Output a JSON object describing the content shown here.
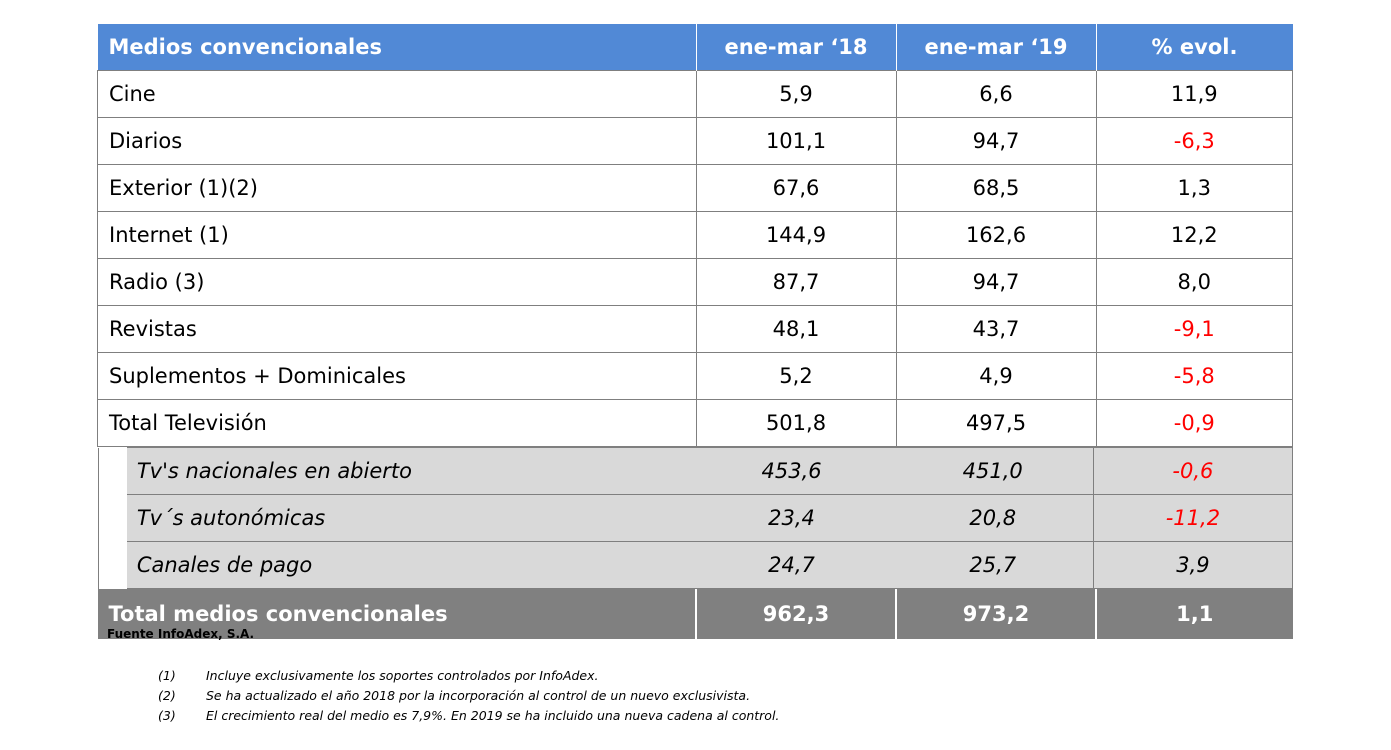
{
  "table": {
    "headers": [
      "Medios convencionales",
      "ene-mar ‘18",
      "ene-mar ‘19",
      "% evol."
    ],
    "rows": [
      {
        "name": "Cine",
        "v18": "5,9",
        "v19": "6,6",
        "evol": "11,9"
      },
      {
        "name": "Diarios",
        "v18": "101,1",
        "v19": "94,7",
        "evol": "-6,3"
      },
      {
        "name": "Exterior (1)(2)",
        "v18": "67,6",
        "v19": "68,5",
        "evol": "1,3"
      },
      {
        "name": "Internet (1)",
        "v18": "144,9",
        "v19": "162,6",
        "evol": "12,2"
      },
      {
        "name": "Radio (3)",
        "v18": "87,7",
        "v19": "94,7",
        "evol": "8,0"
      },
      {
        "name": "Revistas",
        "v18": "48,1",
        "v19": "43,7",
        "evol": "-9,1"
      },
      {
        "name": "Suplementos + Dominicales",
        "v18": "5,2",
        "v19": "4,9",
        "evol": "-5,8"
      },
      {
        "name": "Total Televisión",
        "v18": "501,8",
        "v19": "497,5",
        "evol": "-0,9"
      }
    ],
    "subrows": [
      {
        "name": "Tv's nacionales en abierto",
        "v18": "453,6",
        "v19": "451,0",
        "evol": "-0,6"
      },
      {
        "name": "Tv´s autonómicas",
        "v18": "23,4",
        "v19": "20,8",
        "evol": "-11,2"
      },
      {
        "name": "Canales de pago",
        "v18": "24,7",
        "v19": "25,7",
        "evol": "3,9"
      }
    ],
    "total": {
      "name": "Total medios convencionales",
      "v18": "962,3",
      "v19": "973,2",
      "evol": "1,1"
    }
  },
  "source": "Fuente InfoAdex, S.A.",
  "notes": [
    {
      "num": "(1)",
      "text": "Incluye exclusivamente los soportes controlados por InfoAdex."
    },
    {
      "num": "(2)",
      "text": "Se ha actualizado  el año 2018 por la incorporación al control de un nuevo exclusivista."
    },
    {
      "num": "(3)",
      "text": "El crecimiento real del medio es 7,9%. En 2019 se ha incluido una nueva cadena al control."
    }
  ],
  "colors": {
    "header_bg": "#5189d6",
    "total_bg": "#808080",
    "sub_bg": "#d9d9d9",
    "negative": "#ff0000"
  }
}
